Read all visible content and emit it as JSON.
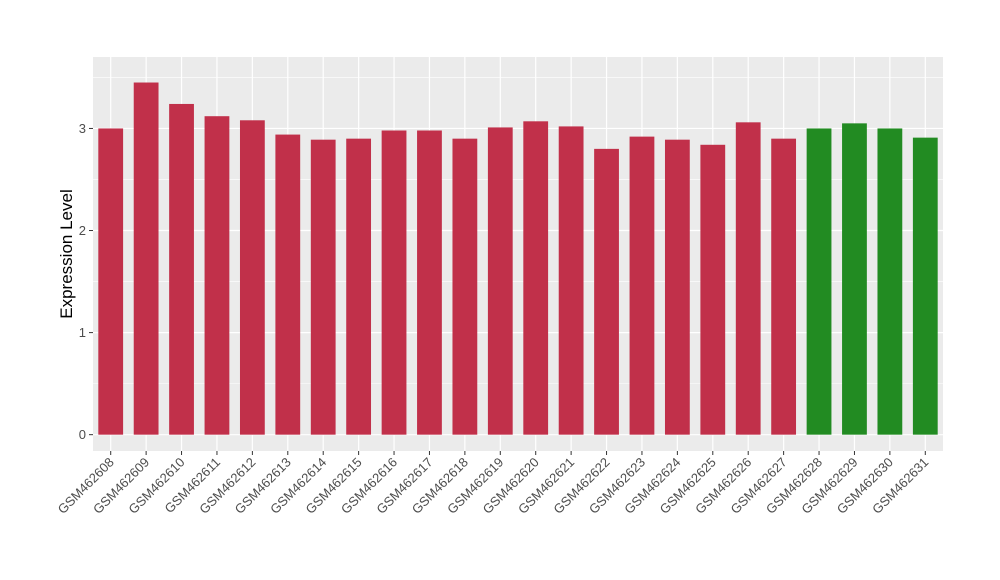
{
  "chart_data": {
    "type": "bar",
    "title": "",
    "xlabel": "",
    "ylabel": "Expression Level",
    "ylim": [
      -0.16,
      3.7
    ],
    "yticks": [
      0,
      1,
      2,
      3
    ],
    "grid": true,
    "categories": [
      "GSM462608",
      "GSM462609",
      "GSM462610",
      "GSM462611",
      "GSM462612",
      "GSM462613",
      "GSM462614",
      "GSM462615",
      "GSM462616",
      "GSM462617",
      "GSM462618",
      "GSM462619",
      "GSM462620",
      "GSM462621",
      "GSM462622",
      "GSM462623",
      "GSM462624",
      "GSM462625",
      "GSM462626",
      "GSM462627",
      "GSM462628",
      "GSM462629",
      "GSM462630",
      "GSM462631"
    ],
    "values": [
      3.0,
      3.45,
      3.24,
      3.12,
      3.08,
      2.94,
      2.89,
      2.9,
      2.98,
      2.98,
      2.9,
      3.01,
      3.07,
      3.02,
      2.8,
      2.92,
      2.89,
      2.84,
      3.06,
      2.9,
      3.0,
      3.05,
      3.0,
      2.91
    ],
    "bar_colors": [
      "#c1304a",
      "#c1304a",
      "#c1304a",
      "#c1304a",
      "#c1304a",
      "#c1304a",
      "#c1304a",
      "#c1304a",
      "#c1304a",
      "#c1304a",
      "#c1304a",
      "#c1304a",
      "#c1304a",
      "#c1304a",
      "#c1304a",
      "#c1304a",
      "#c1304a",
      "#c1304a",
      "#c1304a",
      "#c1304a",
      "#228b22",
      "#228b22",
      "#228b22",
      "#228b22"
    ],
    "panel_background": "#ebebeb",
    "gridline_color": "#ffffff"
  }
}
